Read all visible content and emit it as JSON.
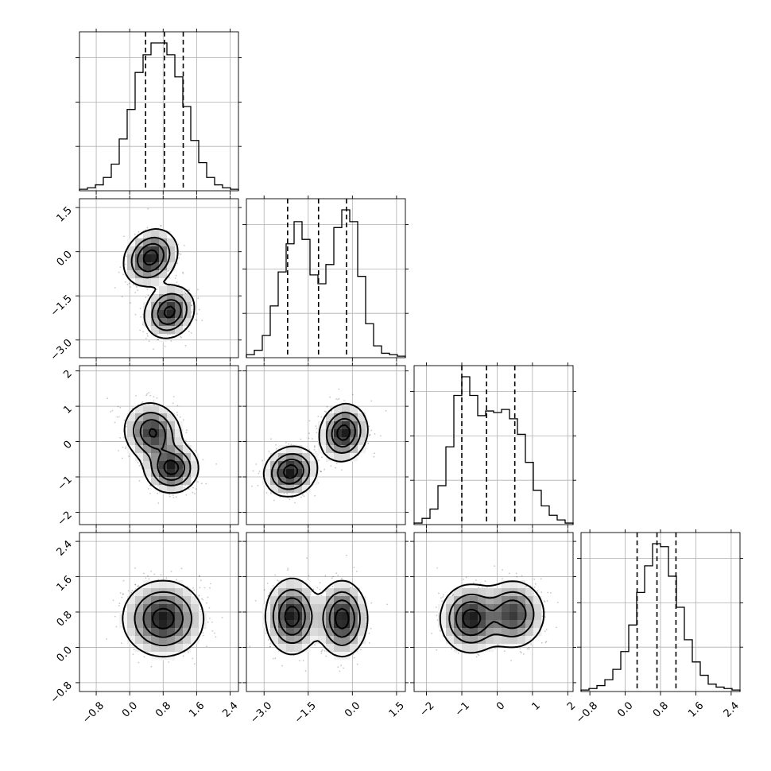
{
  "chart_data": {
    "type": "corner",
    "parameters": 4,
    "grid": true,
    "axes": [
      {
        "range": [
          -1.2,
          2.6
        ],
        "ticks": [
          "−0.8",
          "0.0",
          "0.8",
          "1.6",
          "2.4"
        ],
        "tick_values": [
          -0.8,
          0.0,
          0.8,
          1.6,
          2.4
        ]
      },
      {
        "range": [
          -3.6,
          1.8
        ],
        "ticks": [
          "−3.0",
          "−1.5",
          "0.0",
          "1.5"
        ],
        "tick_values": [
          -3.0,
          -1.5,
          0.0,
          1.5
        ]
      },
      {
        "range": [
          -2.35,
          2.15
        ],
        "ticks": [
          "−2",
          "−1",
          "0",
          "1",
          "2"
        ],
        "tick_values": [
          -2,
          -1,
          0,
          1,
          2
        ]
      },
      {
        "range": [
          -1.0,
          2.6
        ],
        "ticks": [
          "−0.8",
          "0.0",
          "0.8",
          "1.6",
          "2.4"
        ],
        "tick_values": [
          -0.8,
          0.0,
          0.8,
          1.6,
          2.4
        ]
      }
    ],
    "marginals": [
      {
        "param": 0,
        "bin_start": -1.2,
        "bin_width": 0.19,
        "counts": [
          0.01,
          0.02,
          0.04,
          0.09,
          0.18,
          0.35,
          0.55,
          0.8,
          0.92,
          1.0,
          1.0,
          0.92,
          0.77,
          0.57,
          0.34,
          0.19,
          0.09,
          0.04,
          0.02,
          0.01
        ],
        "quantiles": [
          0.38,
          0.83,
          1.28
        ]
      },
      {
        "param": 1,
        "bin_start": -3.6,
        "bin_width": 0.27,
        "counts": [
          0.02,
          0.05,
          0.15,
          0.35,
          0.58,
          0.77,
          0.92,
          0.8,
          0.56,
          0.5,
          0.63,
          0.88,
          1.0,
          0.92,
          0.55,
          0.23,
          0.08,
          0.03,
          0.02,
          0.01
        ],
        "quantiles": [
          -2.2,
          -1.15,
          -0.2
        ]
      },
      {
        "param": 2,
        "bin_start": -2.35,
        "bin_width": 0.225,
        "counts": [
          0.01,
          0.04,
          0.1,
          0.25,
          0.5,
          0.83,
          0.95,
          0.83,
          0.7,
          0.73,
          0.72,
          0.74,
          0.68,
          0.58,
          0.4,
          0.22,
          0.12,
          0.06,
          0.03,
          0.01
        ],
        "quantiles": [
          -1.0,
          -0.3,
          0.5
        ]
      },
      {
        "param": 3,
        "bin_start": -1.0,
        "bin_width": 0.18,
        "counts": [
          0.01,
          0.02,
          0.04,
          0.08,
          0.15,
          0.27,
          0.45,
          0.67,
          0.85,
          1.0,
          0.98,
          0.78,
          0.57,
          0.35,
          0.2,
          0.11,
          0.05,
          0.03,
          0.02,
          0.01
        ],
        "quantiles": [
          0.27,
          0.72,
          1.15
        ]
      }
    ],
    "joint": [
      {
        "row": 1,
        "col": 0,
        "modes": [
          {
            "x": 0.5,
            "y": -0.2,
            "sx": 0.3,
            "sy": 0.45,
            "rho": 0.2,
            "w": 1.0
          },
          {
            "x": 0.95,
            "y": -2.05,
            "sx": 0.28,
            "sy": 0.42,
            "rho": 0.15,
            "w": 0.95
          }
        ]
      },
      {
        "row": 2,
        "col": 0,
        "modes": [
          {
            "x": 0.55,
            "y": 0.25,
            "sx": 0.32,
            "sy": 0.4,
            "rho": -0.1,
            "w": 0.9
          },
          {
            "x": 1.0,
            "y": -0.75,
            "sx": 0.3,
            "sy": 0.33,
            "rho": 0.0,
            "w": 1.0
          }
        ]
      },
      {
        "row": 2,
        "col": 1,
        "modes": [
          {
            "x": -2.1,
            "y": -0.85,
            "sx": 0.42,
            "sy": 0.33,
            "rho": 0.1,
            "w": 1.0
          },
          {
            "x": -0.3,
            "y": 0.25,
            "sx": 0.38,
            "sy": 0.38,
            "rho": 0.1,
            "w": 1.0
          }
        ]
      },
      {
        "row": 3,
        "col": 0,
        "modes": [
          {
            "x": 0.8,
            "y": 0.65,
            "sx": 0.45,
            "sy": 0.4,
            "rho": 0.0,
            "w": 1.0
          }
        ]
      },
      {
        "row": 3,
        "col": 1,
        "modes": [
          {
            "x": -2.05,
            "y": 0.7,
            "sx": 0.42,
            "sy": 0.4,
            "rho": 0.0,
            "w": 1.0
          },
          {
            "x": -0.35,
            "y": 0.65,
            "sx": 0.4,
            "sy": 0.4,
            "rho": 0.0,
            "w": 1.0
          }
        ]
      },
      {
        "row": 3,
        "col": 2,
        "modes": [
          {
            "x": -0.75,
            "y": 0.65,
            "sx": 0.4,
            "sy": 0.36,
            "rho": 0.0,
            "w": 1.0
          },
          {
            "x": 0.45,
            "y": 0.75,
            "sx": 0.42,
            "sy": 0.36,
            "rho": 0.0,
            "w": 0.85
          }
        ]
      }
    ]
  }
}
